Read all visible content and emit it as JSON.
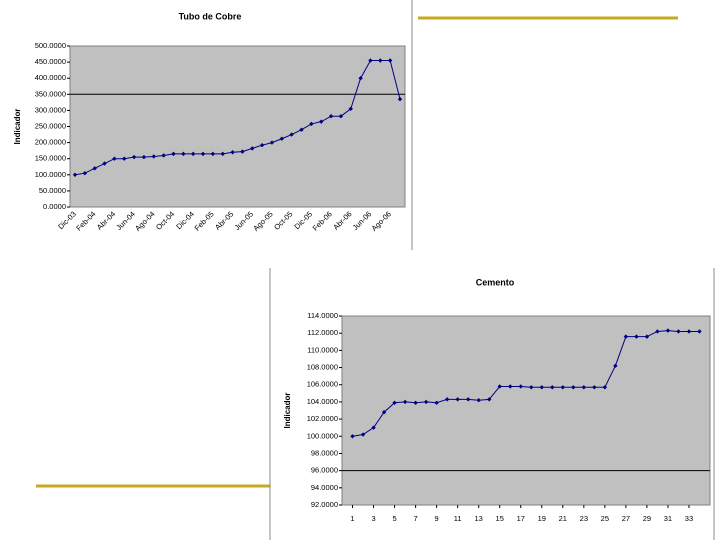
{
  "chart_data": [
    {
      "type": "line",
      "title": "Tubo de Cobre",
      "y_label": "Indicador",
      "color": "#000080",
      "plot_color": "#c0c0c0",
      "hline": 350,
      "categories": [
        "Dic-03",
        null,
        "Feb-04",
        null,
        "Abr-04",
        null,
        "Jun-04",
        null,
        "Ago-04",
        null,
        "Oct-04",
        null,
        "Dic-04",
        null,
        "Feb-05",
        null,
        "Abr-05",
        null,
        "Jun-05",
        null,
        "Ago-05",
        null,
        "Oct-05",
        null,
        "Dic-05",
        null,
        "Feb-06",
        null,
        "Abr-06",
        null,
        "Jun-06",
        null,
        "Ago-06",
        null
      ],
      "values": [
        100,
        105,
        120,
        135,
        150,
        150,
        155,
        155,
        157,
        160,
        165,
        165,
        165,
        165,
        165,
        165,
        170,
        172,
        182,
        192,
        200,
        212,
        225,
        240,
        258,
        265,
        282,
        282,
        305,
        400,
        455,
        455,
        455,
        335
      ],
      "ylim": [
        0,
        500
      ],
      "yticks": [
        {
          "value": 0,
          "label": "0.0000"
        },
        {
          "value": 50,
          "label": "50.0000"
        },
        {
          "value": 100,
          "label": "100.0000"
        },
        {
          "value": 150,
          "label": "150.0000"
        },
        {
          "value": 200,
          "label": "200.0000"
        },
        {
          "value": 250,
          "label": "250.0000"
        },
        {
          "value": 300,
          "label": "300.0000"
        },
        {
          "value": 350,
          "label": "350.0000"
        },
        {
          "value": 400,
          "label": "400.0000"
        },
        {
          "value": 450,
          "label": "450.0000"
        },
        {
          "value": 500,
          "label": "500.0000"
        }
      ]
    },
    {
      "type": "line",
      "title": "Cemento",
      "y_label": "Indicador",
      "color": "#000080",
      "plot_color": "#c0c0c0",
      "hline": 96,
      "x": [
        1,
        2,
        3,
        4,
        5,
        6,
        7,
        8,
        9,
        10,
        11,
        12,
        13,
        14,
        15,
        16,
        17,
        18,
        19,
        20,
        21,
        22,
        23,
        24,
        25,
        26,
        27,
        28,
        29,
        30,
        31,
        32,
        33,
        34
      ],
      "values": [
        100,
        100.2,
        101,
        102.8,
        103.9,
        104,
        103.9,
        104,
        103.9,
        104.3,
        104.3,
        104.3,
        104.2,
        104.3,
        105.8,
        105.8,
        105.8,
        105.7,
        105.7,
        105.7,
        105.7,
        105.7,
        105.7,
        105.7,
        105.7,
        108.2,
        111.6,
        111.6,
        111.6,
        112.2,
        112.3,
        112.2,
        112.2,
        112.2
      ],
      "xlim": [
        0,
        35
      ],
      "xticks": [
        1,
        3,
        5,
        7,
        9,
        11,
        13,
        15,
        17,
        19,
        21,
        23,
        25,
        27,
        29,
        31,
        33
      ],
      "ylim": [
        92,
        114
      ],
      "yticks": [
        {
          "value": 92,
          "label": "92.0000"
        },
        {
          "value": 94,
          "label": "94.0000"
        },
        {
          "value": 96,
          "label": "96.0000"
        },
        {
          "value": 98,
          "label": "98.0000"
        },
        {
          "value": 100,
          "label": "100.0000"
        },
        {
          "value": 102,
          "label": "102.0000"
        },
        {
          "value": 104,
          "label": "104.0000"
        },
        {
          "value": 106,
          "label": "106.0000"
        },
        {
          "value": 108,
          "label": "108.0000"
        },
        {
          "value": 110,
          "label": "110.0000"
        },
        {
          "value": 112,
          "label": "112.0000"
        },
        {
          "value": 114,
          "label": "114.0000"
        }
      ]
    }
  ]
}
